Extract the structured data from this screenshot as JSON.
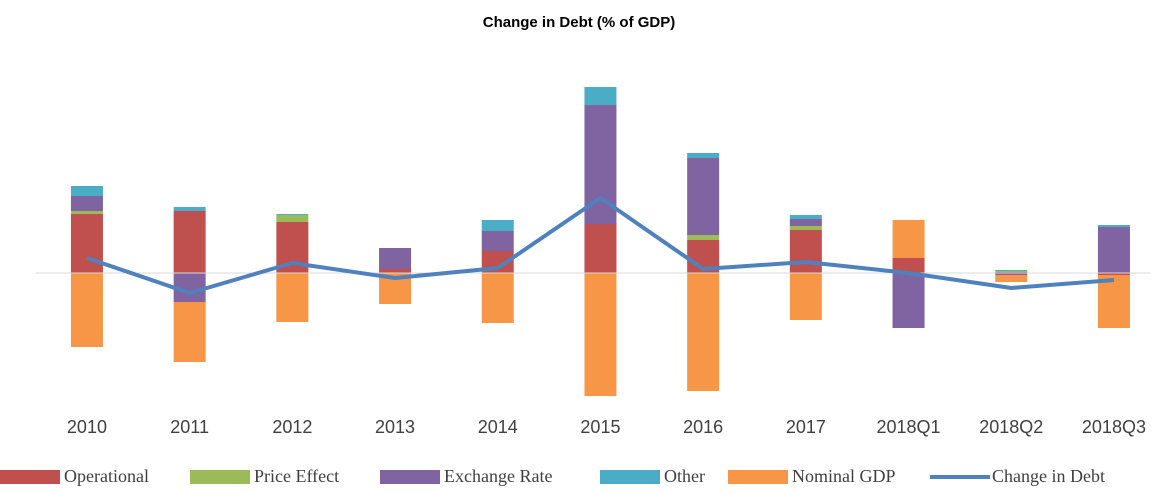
{
  "chart_data": {
    "type": "bar",
    "stacked": true,
    "title": "Change in Debt (% of GDP)",
    "categories": [
      "2010",
      "2011",
      "2012",
      "2013",
      "2014",
      "2015",
      "2016",
      "2017",
      "2018Q1",
      "2018Q2",
      "2018Q3"
    ],
    "ylim": [
      -13,
      19
    ],
    "legend": "bottom",
    "series": [
      {
        "name": "Operational",
        "color": "#c0504d",
        "values": [
          5.9,
          6.2,
          5.1,
          0.4,
          2.2,
          4.9,
          3.3,
          4.3,
          1.5,
          0.1,
          -0.2
        ]
      },
      {
        "name": "Price Effect",
        "color": "#9bbb59",
        "values": [
          0.3,
          0,
          0.7,
          0,
          0,
          0,
          0.5,
          0.4,
          0,
          0.1,
          0
        ]
      },
      {
        "name": "Exchange Rate",
        "color": "#8064a2",
        "values": [
          1.5,
          -2.9,
          0,
          2.1,
          2.0,
          11.9,
          7.7,
          0.7,
          -5.5,
          -0.2,
          4.6
        ]
      },
      {
        "name": "Other",
        "color": "#4bacc6",
        "values": [
          1.0,
          0.4,
          0.1,
          0,
          1.1,
          1.8,
          0.5,
          0.4,
          0,
          0.1,
          0.2
        ]
      },
      {
        "name": "Nominal GDP",
        "color": "#f79646",
        "values": [
          -7.4,
          -6.0,
          -4.9,
          -3.1,
          -5.0,
          -12.3,
          -11.8,
          -4.7,
          3.8,
          -0.7,
          -5.3
        ]
      },
      {
        "name": "Change in Debt",
        "type": "line",
        "color": "#4f81bd",
        "values": [
          1.5,
          -2.0,
          1.0,
          -0.5,
          0.5,
          7.5,
          0.4,
          1.1,
          0,
          -1.5,
          -0.7
        ]
      }
    ]
  }
}
